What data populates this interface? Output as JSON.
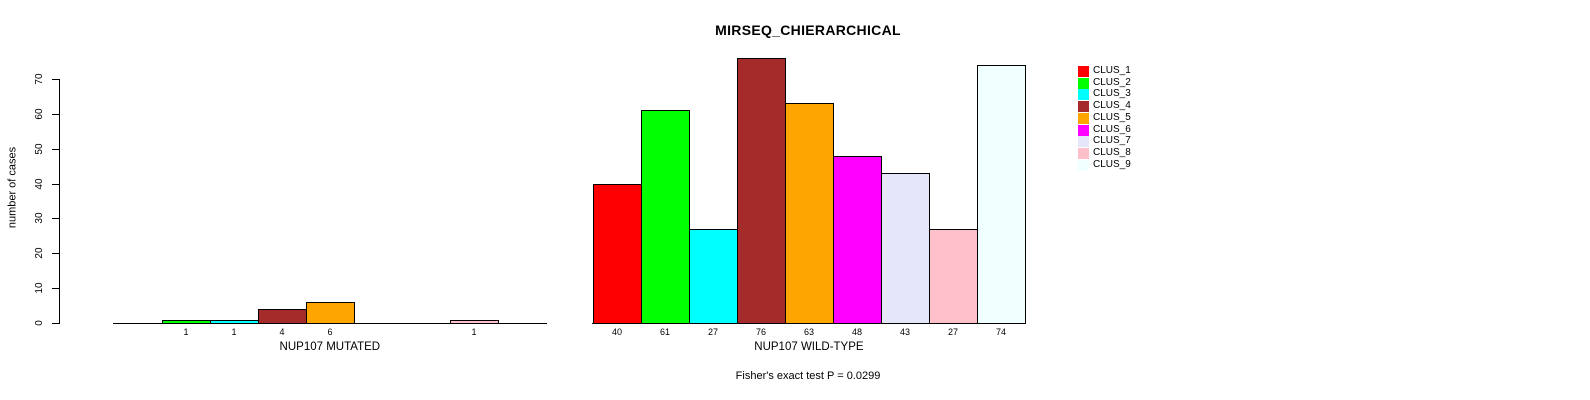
{
  "title": "MIRSEQ_CHIERARCHICAL",
  "y_axis": {
    "label": "number of cases"
  },
  "footer": "Fisher's exact test P = 0.0299",
  "legend": {
    "entries": [
      {
        "label": "CLUS_1",
        "color": "#FF0000"
      },
      {
        "label": "CLUS_2",
        "color": "#00FF00"
      },
      {
        "label": "CLUS_3",
        "color": "#00FFFF"
      },
      {
        "label": "CLUS_4",
        "color": "#A52A2A"
      },
      {
        "label": "CLUS_5",
        "color": "#FFA500"
      },
      {
        "label": "CLUS_6",
        "color": "#FF00FF"
      },
      {
        "label": "CLUS_7",
        "color": "#E6E6FA"
      },
      {
        "label": "CLUS_8",
        "color": "#FFC0CB"
      },
      {
        "label": "CLUS_9",
        "color": "#F0FFFF"
      }
    ]
  },
  "chart_data": {
    "type": "bar",
    "title": "MIRSEQ_CHIERARCHICAL",
    "ylabel": "number of cases",
    "ylim": [
      0,
      70
    ],
    "yticks": [
      0,
      10,
      20,
      30,
      40,
      50,
      60,
      70
    ],
    "grid": false,
    "legend_position": "right",
    "categories": [
      "CLUS_1",
      "CLUS_2",
      "CLUS_3",
      "CLUS_4",
      "CLUS_5",
      "CLUS_6",
      "CLUS_7",
      "CLUS_8",
      "CLUS_9"
    ],
    "colors": [
      "#FF0000",
      "#00FF00",
      "#00FFFF",
      "#A52A2A",
      "#FFA500",
      "#FF00FF",
      "#E6E6FA",
      "#FFC0CB",
      "#F0FFFF"
    ],
    "groups": [
      {
        "label": "NUP107 MUTATED",
        "values": [
          0,
          1,
          1,
          4,
          6,
          0,
          0,
          1,
          0
        ]
      },
      {
        "label": "NUP107 WILD-TYPE",
        "values": [
          40,
          61,
          27,
          76,
          63,
          48,
          43,
          27,
          74
        ]
      }
    ],
    "annotation": "Fisher's exact test P = 0.0299"
  }
}
